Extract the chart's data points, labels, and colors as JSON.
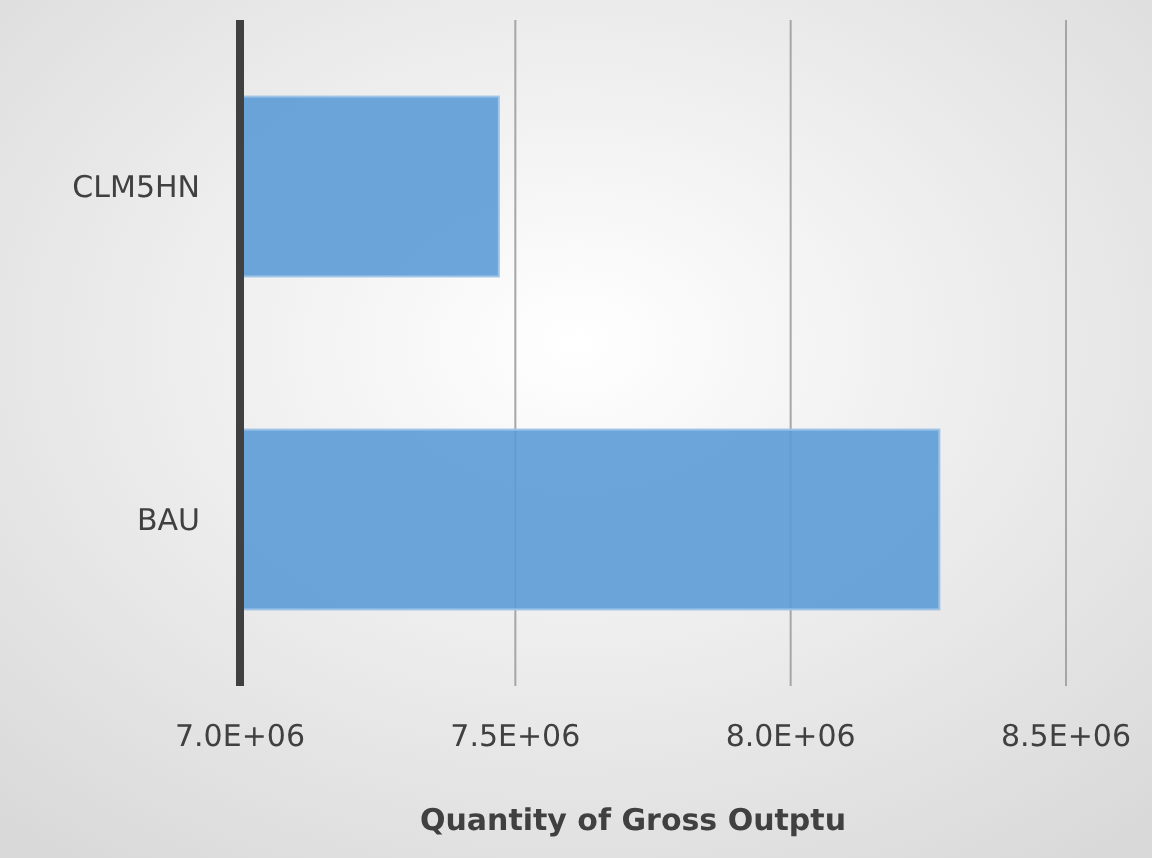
{
  "chart_data": {
    "type": "bar",
    "orientation": "horizontal",
    "xlabel": "Quantity of Gross Outptu",
    "categories": [
      "CLM5HN",
      "BAU"
    ],
    "values": [
      7470000,
      8270000
    ],
    "color": "#5b9bd5",
    "xlim": [
      7000000,
      8500000
    ],
    "xticks": [
      {
        "value": 7000000,
        "label": "7.0E+06"
      },
      {
        "value": 7500000,
        "label": "7.5E+06"
      },
      {
        "value": 8000000,
        "label": "8.0E+06"
      },
      {
        "value": 8500000,
        "label": "8.5E+06"
      }
    ],
    "grid": "x"
  }
}
